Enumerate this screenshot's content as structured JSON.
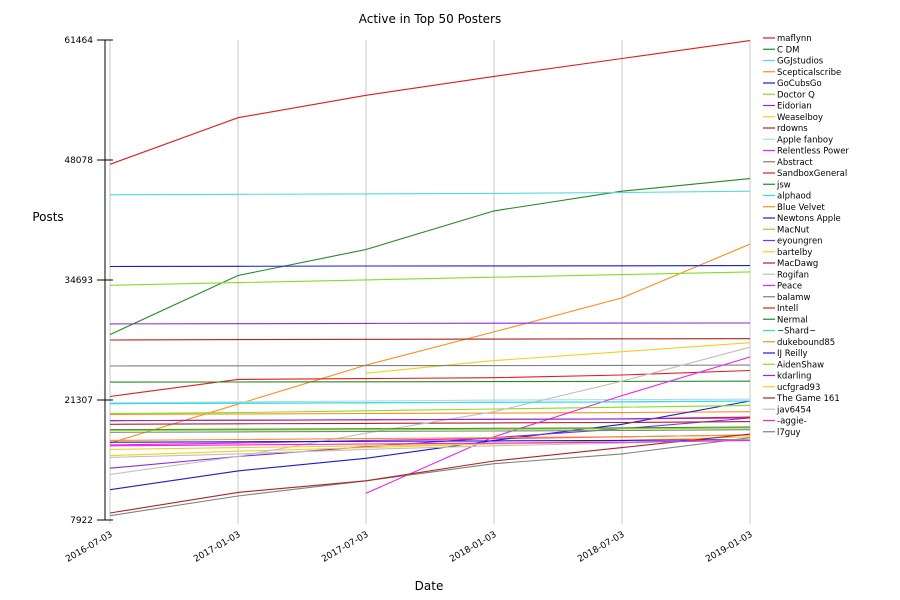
{
  "chart_data": {
    "type": "line",
    "title": "Active in Top 50 Posters",
    "xlabel": "Date",
    "ylabel": "Posts",
    "x": [
      "2016-07-03",
      "2017-01-03",
      "2017-07-03",
      "2018-01-03",
      "2018-07-03",
      "2019-01-03"
    ],
    "y_ticks": [
      7922,
      21307,
      34693,
      48078,
      61464
    ],
    "ylim": [
      7922,
      61464
    ],
    "grid": "vertical",
    "legend_position": "right",
    "series": [
      {
        "name": "maflynn",
        "color": "#e41a1c",
        "values": [
          47600,
          52800,
          55300,
          57400,
          59400,
          61400
        ]
      },
      {
        "name": "C DM",
        "color": "#228b22",
        "values": [
          28600,
          35200,
          38100,
          42400,
          44600,
          46000
        ]
      },
      {
        "name": "GGJstudios",
        "color": "#4ddddd",
        "values": [
          44200,
          44250,
          44300,
          44350,
          44450,
          44600
        ]
      },
      {
        "name": "Scepticalscribe",
        "color": "#ff8c1a",
        "values": [
          16500,
          null,
          25200,
          28900,
          32700,
          38700
        ]
      },
      {
        "name": "GoCubsGo",
        "color": "#1a1ad6",
        "values": [
          36200,
          36220,
          36250,
          36270,
          36280,
          36300
        ]
      },
      {
        "name": "Doctor Q",
        "color": "#88dd22",
        "values": [
          34100,
          34400,
          34700,
          35000,
          35300,
          35600
        ]
      },
      {
        "name": "Eidorian",
        "color": "#8a2be2",
        "values": [
          29800,
          29820,
          29850,
          29870,
          29880,
          29900
        ]
      },
      {
        "name": "Weaselboy",
        "color": "#f0d020",
        "values": [
          null,
          null,
          24300,
          25700,
          26700,
          27700
        ]
      },
      {
        "name": "rdowns",
        "color": "#b22222",
        "values": [
          28000,
          28050,
          28080,
          28100,
          28130,
          28150
        ]
      },
      {
        "name": "Apple fanboy",
        "color": "#b0d8f0",
        "values": [
          21000,
          21100,
          21200,
          21300,
          21350,
          21400
        ]
      },
      {
        "name": "Relentless Power",
        "color": "#ee22ee",
        "values": [
          16300,
          16500,
          16800,
          17000,
          17200,
          17400
        ]
      },
      {
        "name": "Abstract",
        "color": "#808080",
        "values": [
          25100,
          25120,
          25140,
          25150,
          25170,
          25200
        ]
      },
      {
        "name": "SandboxGeneral",
        "color": "#e41a1c",
        "values": [
          21700,
          23600,
          23700,
          23800,
          24100,
          24600
        ]
      },
      {
        "name": "jsw",
        "color": "#228b22",
        "values": [
          23300,
          23320,
          23340,
          23360,
          23380,
          23400
        ]
      },
      {
        "name": "alphaod",
        "color": "#33dddd",
        "values": [
          20900,
          20950,
          21000,
          21050,
          21100,
          21200
        ]
      },
      {
        "name": "Blue Velvet",
        "color": "#ff8c1a",
        "values": [
          19700,
          19750,
          19800,
          19850,
          19900,
          20000
        ]
      },
      {
        "name": "Newtons Apple",
        "color": "#1a1ad6",
        "values": [
          11300,
          13400,
          14800,
          16800,
          18600,
          21200
        ]
      },
      {
        "name": "MacNut",
        "color": "#88dd22",
        "values": [
          19800,
          19900,
          20100,
          20300,
          20500,
          20700
        ]
      },
      {
        "name": "eyoungren",
        "color": "#8a2be2",
        "values": [
          13700,
          15000,
          16100,
          17100,
          18100,
          19300
        ]
      },
      {
        "name": "bartelby",
        "color": "#f0d020",
        "values": [
          15100,
          15600,
          16000,
          16400,
          16800,
          17200
        ]
      },
      {
        "name": "MacDawg",
        "color": "#b22222",
        "values": [
          18600,
          18650,
          18700,
          18750,
          18800,
          18900
        ]
      },
      {
        "name": "Rogifan",
        "color": "#c0c0c0",
        "values": [
          13000,
          15000,
          17600,
          20000,
          23400,
          27200
        ]
      },
      {
        "name": "Peace",
        "color": "#ee22ee",
        "values": [
          null,
          null,
          10900,
          17200,
          21800,
          26100
        ]
      },
      {
        "name": "balamw",
        "color": "#808080",
        "values": [
          8400,
          10600,
          12300,
          14200,
          15300,
          17100
        ]
      },
      {
        "name": "Intell",
        "color": "#e41a1c",
        "values": [
          19000,
          19050,
          19100,
          19150,
          19200,
          19400
        ]
      },
      {
        "name": "Nermal",
        "color": "#228b22",
        "values": [
          18000,
          18050,
          18100,
          18150,
          18200,
          18300
        ]
      },
      {
        "name": "~Shard~",
        "color": "#33dddd",
        "values": [
          20900,
          20950,
          21000,
          21050,
          21100,
          21200
        ]
      },
      {
        "name": "dukebound85",
        "color": "#ff8c1a",
        "values": [
          16800,
          16900,
          17000,
          17100,
          17200,
          17400
        ]
      },
      {
        "name": "IJ Reilly",
        "color": "#1a1ad6",
        "values": [
          16600,
          16650,
          16700,
          16750,
          16800,
          16900
        ]
      },
      {
        "name": "AidenShaw",
        "color": "#88dd22",
        "values": [
          17900,
          17950,
          18000,
          18050,
          18100,
          18200
        ]
      },
      {
        "name": "kdarling",
        "color": "#8a2be2",
        "values": [
          19000,
          19050,
          19100,
          19150,
          19200,
          19300
        ]
      },
      {
        "name": "ucfgrad93",
        "color": "#f0d020",
        "values": [
          15800,
          16000,
          16200,
          16400,
          16600,
          16800
        ]
      },
      {
        "name": "The Game 161",
        "color": "#b22222",
        "values": [
          8700,
          11000,
          12300,
          14500,
          16000,
          17500
        ]
      },
      {
        "name": "jav6454",
        "color": "#c0c0c0",
        "values": [
          14900,
          15300,
          15800,
          16200,
          16500,
          16900
        ]
      },
      {
        "name": "-aggie-",
        "color": "#ee22ee",
        "values": [
          16200,
          16300,
          16400,
          16500,
          16600,
          16800
        ]
      },
      {
        "name": "l7guy",
        "color": "#808080",
        "values": [
          17700,
          17750,
          17800,
          17850,
          17900,
          18000
        ]
      }
    ]
  }
}
